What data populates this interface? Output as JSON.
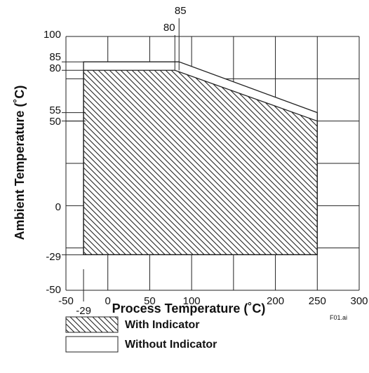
{
  "chart_data": {
    "type": "area",
    "xlabel": "Process Temperature (˚C)",
    "ylabel": "Ambient Temperature (˚C)",
    "xlim": [
      -50,
      300
    ],
    "ylim": [
      -50,
      100
    ],
    "grid": true,
    "x_gridlines": [
      -50,
      0,
      50,
      100,
      150,
      200,
      250,
      300
    ],
    "y_gridlines": [
      -50,
      -25,
      0,
      25,
      50,
      75,
      100
    ],
    "x_ticks": [
      "-50",
      "0",
      "50",
      "100",
      "200",
      "250",
      "300"
    ],
    "x_tick_values": [
      -50,
      0,
      50,
      100,
      200,
      250,
      300
    ],
    "x_extra_ticks": [
      {
        "value": -29,
        "label": "-29"
      }
    ],
    "x_top_labels": [
      {
        "value": 80,
        "label": "80"
      },
      {
        "value": 85,
        "label": "85"
      }
    ],
    "y_ticks": [
      "100",
      "85",
      "80",
      "55",
      "50",
      "0",
      "-29",
      "-50"
    ],
    "y_tick_values": [
      100,
      85,
      80,
      55,
      50,
      0,
      -29,
      -50
    ],
    "series": [
      {
        "name": "With Indicator",
        "style": "hatched",
        "polygon": [
          [
            -29,
            -29
          ],
          [
            -29,
            80
          ],
          [
            80,
            80
          ],
          [
            250,
            50
          ],
          [
            250,
            -29
          ]
        ]
      },
      {
        "name": "Without Indicator",
        "style": "outline",
        "polygon": [
          [
            -29,
            -29
          ],
          [
            -29,
            85
          ],
          [
            85,
            85
          ],
          [
            250,
            55
          ],
          [
            250,
            -29
          ]
        ]
      }
    ],
    "legend_position": "bottom"
  },
  "legend": [
    {
      "label": "With Indicator",
      "swatch": "hatched"
    },
    {
      "label": "Without Indicator",
      "swatch": "plain"
    }
  ],
  "file_id": "F01.ai"
}
